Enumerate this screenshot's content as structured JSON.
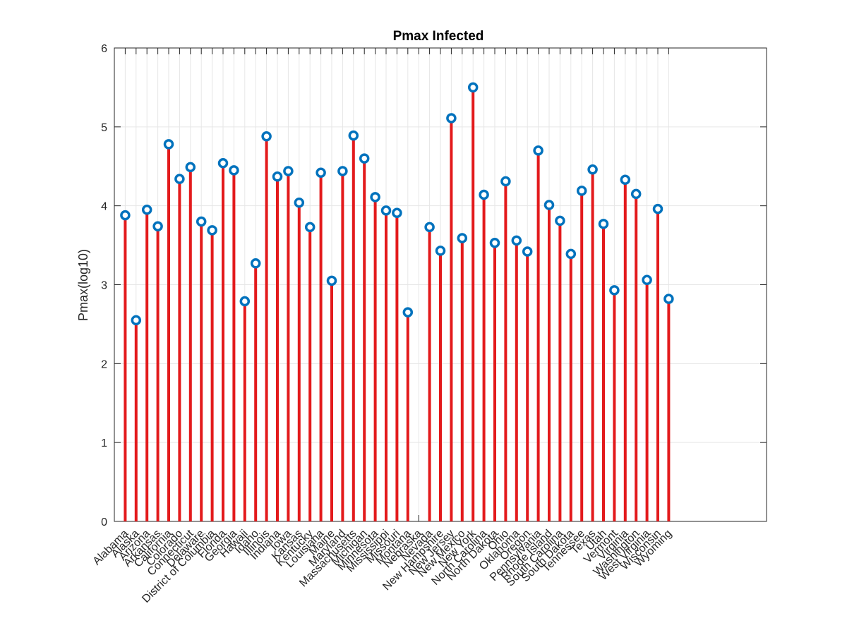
{
  "chart_data": {
    "type": "stem",
    "title": "Pmax Infected",
    "xlabel": "",
    "ylabel": "Pmax(log10)",
    "ylim": [
      0,
      6
    ],
    "yticks": [
      0,
      1,
      2,
      3,
      4,
      5,
      6
    ],
    "xlim": [
      0,
      60
    ],
    "grid": true,
    "colors": {
      "stem": "#e31a1c",
      "marker": "#0072bd",
      "grid": "#e6e6e6",
      "axis": "#262626"
    },
    "categories": [
      "Alabama",
      "Alaska",
      "Arizona",
      "Arkansas",
      "California",
      "Colorado",
      "Connecticut",
      "Delaware",
      "District of Columbia",
      "Florida",
      "Georgia",
      "Hawaii",
      "Idaho",
      "Illinois",
      "Indiana",
      "Iowa",
      "Kansas",
      "Kentucky",
      "Louisiana",
      "Maine",
      "Maryland",
      "Massachusetts",
      "Michigan",
      "Minnesota",
      "Mississippi",
      "Missouri",
      "Montana",
      "Nebraska",
      "Nevada",
      "New Hampshire",
      "New Jersey",
      "New Mexico",
      "New York",
      "North Carolina",
      "North Dakota",
      "Ohio",
      "Oklahoma",
      "Oregon",
      "Pennsylvania",
      "Rhode Island",
      "South Carolina",
      "South Dakota",
      "Tennessee",
      "Texas",
      "Utah",
      "Vermont",
      "Virginia",
      "Washington",
      "West Virginia",
      "Wisconsin",
      "Wyoming"
    ],
    "positions": [
      1,
      2,
      3,
      4,
      5,
      6,
      7,
      8,
      9,
      10,
      11,
      12,
      13,
      14,
      15,
      16,
      17,
      18,
      19,
      20,
      21,
      22,
      23,
      24,
      25,
      26,
      27,
      28,
      29,
      30,
      31,
      32,
      33,
      34,
      35,
      36,
      37,
      38,
      39,
      40,
      41,
      42,
      43,
      44,
      45,
      46,
      47,
      48,
      49,
      50,
      51
    ],
    "values": [
      3.88,
      2.55,
      3.95,
      3.74,
      4.78,
      4.34,
      4.49,
      3.8,
      3.69,
      4.54,
      4.45,
      2.79,
      3.27,
      4.88,
      4.37,
      4.44,
      4.04,
      3.73,
      4.42,
      3.05,
      4.44,
      4.89,
      4.6,
      4.11,
      3.94,
      3.91,
      2.65,
      null,
      3.73,
      3.43,
      5.11,
      3.59,
      5.5,
      4.14,
      3.53,
      4.31,
      3.56,
      3.42,
      4.7,
      4.01,
      3.81,
      3.39,
      4.19,
      4.46,
      3.77,
      2.93,
      4.33,
      4.15,
      3.06,
      3.96,
      2.82
    ]
  }
}
